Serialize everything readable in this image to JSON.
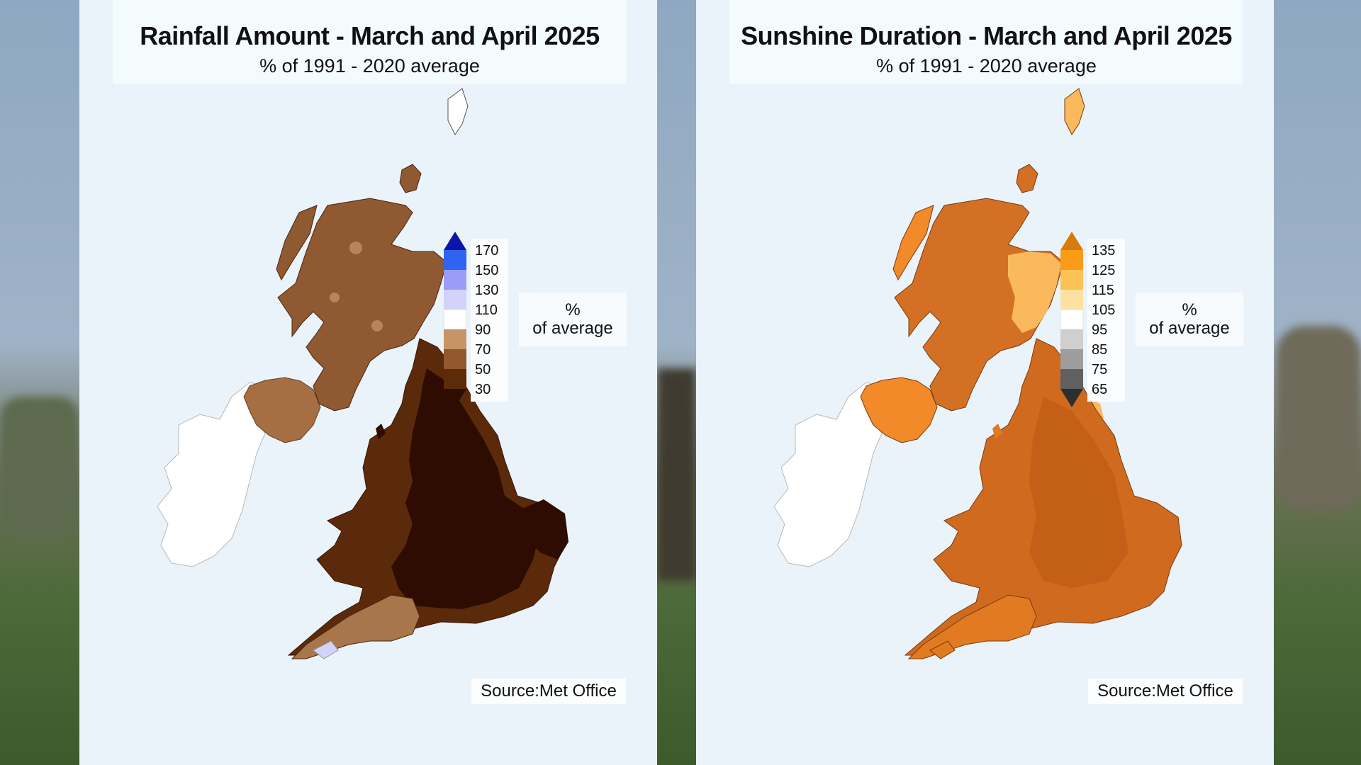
{
  "maps": [
    {
      "title": "Rainfall Amount - March and April 2025",
      "subtitle": "% of 1991 - 2020 average",
      "legend": {
        "labels": [
          "170",
          "150",
          "130",
          "110",
          "90",
          "70",
          "50",
          "30"
        ],
        "colors": [
          "#0a16a8",
          "#2f64f0",
          "#9a9cf5",
          "#d2d2fb",
          "#ffffff",
          "#c79466",
          "#92592c",
          "#5c2c08",
          "#2c0d02"
        ],
        "unit_line1": "%",
        "unit_line2": "of average"
      },
      "map_fill": {
        "britain_base": "#5a2a0a",
        "britain_dark": "#2e0c02",
        "scotland": "#8f5a31",
        "scotland_light": "#b98458",
        "northern_ireland": "#a56f43",
        "southwest": "#a8764b",
        "scilly": "#d2d2fb",
        "ireland": "#ffffff"
      },
      "source": "Source:Met Office"
    },
    {
      "title": "Sunshine Duration - March and April 2025",
      "subtitle": "% of 1991 - 2020 average",
      "legend": {
        "labels": [
          "135",
          "125",
          "115",
          "105",
          "95",
          "85",
          "75",
          "65"
        ],
        "colors": [
          "#d97a0c",
          "#fb9c18",
          "#fdc256",
          "#fde1a2",
          "#ffffff",
          "#cfcfcf",
          "#9d9d9d",
          "#606060",
          "#2f2f2f"
        ],
        "unit_line1": "%",
        "unit_line2": "of average"
      },
      "map_fill": {
        "britain_base": "#d06a1e",
        "britain_dark": "#c35f17",
        "scotland": "#d47024",
        "scotland_light": "#f9b95c",
        "northern_ireland": "#f28a2a",
        "southwest": "#e27a22",
        "scilly": "#e27a22",
        "ireland": "#ffffff"
      },
      "source": "Source:Met Office"
    }
  ],
  "icons": {
    "legend_top_arrow": "triangle-up",
    "legend_bottom_arrow": "triangle-down"
  }
}
